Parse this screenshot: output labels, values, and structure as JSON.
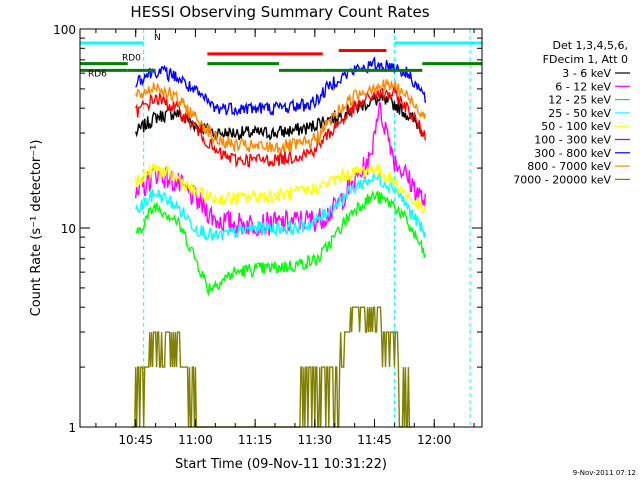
{
  "chart_data": {
    "type": "line",
    "title": "HESSI Observing Summary Count Rates",
    "xlabel": "Start Time (09-Nov-11 10:31:22)",
    "ylabel": "Count Rate (s⁻¹ detector⁻¹)",
    "yscale": "log",
    "ylim": [
      1,
      100
    ],
    "xlim_minutes_after_10h31": [
      0,
      101
    ],
    "x_ticks": [
      "10:45",
      "11:00",
      "11:15",
      "11:30",
      "11:45",
      "12:00"
    ],
    "y_ticks": [
      "1",
      "10",
      "100"
    ],
    "footer_date": "9-Nov-2011 07:12",
    "legend_header": [
      "Det 1,3,4,5,6,",
      "FDecim 1, Att 0"
    ],
    "grid": false,
    "legend_position": "right",
    "series": [
      {
        "name": "3 - 6 keV",
        "color": "#000000",
        "x": [
          "10:43",
          "10:45",
          "10:50",
          "10:55",
          "11:00",
          "11:05",
          "11:10",
          "11:15",
          "11:20",
          "11:25",
          "11:29",
          "11:31",
          "11:35",
          "11:40",
          "11:45",
          "11:50",
          "11:54",
          "11:58"
        ],
        "values": [
          null,
          30,
          36,
          38,
          33,
          30,
          30,
          30,
          30,
          31,
          32,
          34,
          36,
          40,
          44,
          42,
          36,
          30
        ]
      },
      {
        "name": "6 - 12 keV",
        "color": "#ff00ff",
        "x": [
          "10:45",
          "10:50",
          "10:55",
          "11:00",
          "11:05",
          "11:10",
          "11:15",
          "11:20",
          "11:25",
          "11:29",
          "11:31",
          "11:35",
          "11:40",
          "11:44",
          "11:46",
          "11:50",
          "11:54",
          "11:58"
        ],
        "values": [
          14,
          19,
          17,
          14,
          11,
          10.5,
          10.5,
          10.5,
          10.8,
          11,
          11,
          12.5,
          17,
          22,
          40,
          22,
          17,
          13
        ]
      },
      {
        "name": "12 - 25 keV",
        "color": "#00ff00",
        "x": [
          "10:45",
          "10:50",
          "10:55",
          "11:00",
          "11:03",
          "11:05",
          "11:10",
          "11:15",
          "11:20",
          "11:25",
          "11:29",
          "11:31",
          "11:35",
          "11:40",
          "11:45",
          "11:50",
          "11:54",
          "11:58"
        ],
        "values": [
          9,
          13,
          11,
          7,
          5,
          5.2,
          6,
          6.2,
          6.3,
          6.5,
          6.8,
          7,
          9,
          12.5,
          14.5,
          13,
          10,
          7
        ]
      },
      {
        "name": "25 - 50 keV",
        "color": "#00ffff",
        "x": [
          "10:45",
          "10:50",
          "10:55",
          "11:00",
          "11:05",
          "11:10",
          "11:15",
          "11:20",
          "11:25",
          "11:29",
          "11:31",
          "11:35",
          "11:40",
          "11:45",
          "11:50",
          "11:54",
          "11:58"
        ],
        "values": [
          12,
          15,
          13,
          10,
          9,
          9.5,
          10,
          10,
          10,
          10.5,
          11,
          13,
          16,
          18,
          16,
          12,
          9
        ]
      },
      {
        "name": "50 - 100 keV",
        "color": "#ffff00",
        "x": [
          "10:45",
          "10:50",
          "10:55",
          "11:00",
          "11:05",
          "11:10",
          "11:15",
          "11:20",
          "11:25",
          "11:29",
          "11:31",
          "11:35",
          "11:40",
          "11:45",
          "11:50",
          "11:54",
          "11:58"
        ],
        "values": [
          17,
          20,
          18,
          15,
          14,
          14,
          14.5,
          14.5,
          15,
          15.5,
          16,
          17.5,
          19,
          20,
          17,
          14,
          12
        ]
      },
      {
        "name": "100 - 300 keV",
        "color": "#ff0000",
        "x": [
          "10:45",
          "10:50",
          "10:55",
          "11:00",
          "11:05",
          "11:10",
          "11:15",
          "11:20",
          "11:25",
          "11:29",
          "11:31",
          "11:35",
          "11:40",
          "11:45",
          "11:50",
          "11:54",
          "11:58"
        ],
        "values": [
          38,
          45,
          40,
          32,
          24,
          22,
          22,
          22,
          23,
          24,
          26,
          32,
          40,
          47,
          47,
          38,
          28
        ]
      },
      {
        "name": "300 - 800 keV",
        "color": "#0000ff",
        "x": [
          "10:45",
          "10:50",
          "10:55",
          "11:00",
          "11:05",
          "11:10",
          "11:15",
          "11:20",
          "11:25",
          "11:29",
          "11:31",
          "11:35",
          "11:40",
          "11:45",
          "11:50",
          "11:54",
          "11:58"
        ],
        "values": [
          55,
          62,
          58,
          48,
          40,
          40,
          40,
          40,
          41,
          42,
          45,
          55,
          62,
          66,
          65,
          58,
          44
        ]
      },
      {
        "name": "800 - 7000 keV",
        "color": "#ff8800",
        "x": [
          "10:45",
          "10:50",
          "10:55",
          "11:00",
          "11:05",
          "11:10",
          "11:15",
          "11:20",
          "11:25",
          "11:29",
          "11:31",
          "11:35",
          "11:40",
          "11:45",
          "11:50",
          "11:54",
          "11:58"
        ],
        "values": [
          45,
          52,
          45,
          36,
          28,
          26,
          25.5,
          25.5,
          26,
          27,
          29,
          37,
          46,
          52,
          52,
          44,
          36
        ]
      },
      {
        "name": "7000 - 20000 keV",
        "color": "#808000",
        "x": [
          "10:44",
          "10:45",
          "10:47",
          "10:50",
          "10:55",
          "10:58",
          "11:00",
          "11:01",
          "11:20",
          "11:25",
          "11:28",
          "11:35",
          "11:38",
          "11:40",
          "11:45",
          "11:48",
          "11:50",
          "11:52",
          "11:55"
        ],
        "values": [
          1,
          2,
          2,
          3,
          3,
          2,
          2,
          1,
          1,
          1,
          2,
          2,
          3,
          4,
          4,
          3,
          3,
          2,
          1
        ]
      }
    ],
    "attenuator_segments": [
      {
        "label": "",
        "color": "#ff0000",
        "x": [
          "11:03",
          "11:32"
        ],
        "y": 75
      },
      {
        "label": "",
        "color": "#ff0000",
        "x": [
          "11:36",
          "11:48"
        ],
        "y": 78
      }
    ],
    "data_mode_segments": [
      {
        "label": "RD0",
        "color": "#008000",
        "x": [
          "10:31",
          "10:43"
        ],
        "y": 67
      },
      {
        "label": "RD6",
        "color": "#008000",
        "x": [
          "10:31",
          "10:43"
        ],
        "y": 62
      },
      {
        "label": "",
        "color": "#008000",
        "x": [
          "10:43",
          "10:50"
        ],
        "y": 62
      },
      {
        "label": "",
        "color": "#008000",
        "x": [
          "11:03",
          "11:21"
        ],
        "y": 67
      },
      {
        "label": "",
        "color": "#008000",
        "x": [
          "11:21",
          "11:32"
        ],
        "y": 62
      },
      {
        "label": "",
        "color": "#008000",
        "x": [
          "11:32",
          "11:57"
        ],
        "y": 62
      },
      {
        "label": "",
        "color": "#008000",
        "x": [
          "11:57",
          "12:12"
        ],
        "y": 67
      }
    ],
    "night_segments": [
      {
        "label": "N",
        "color": "#00ffff",
        "x": [
          "10:31",
          "10:47"
        ],
        "y": 85
      },
      {
        "label": "",
        "color": "#00ffff",
        "x": [
          "11:50",
          "12:12"
        ],
        "y": 85
      }
    ],
    "night_boundaries": [
      "10:47",
      "11:50",
      "12:09"
    ]
  }
}
